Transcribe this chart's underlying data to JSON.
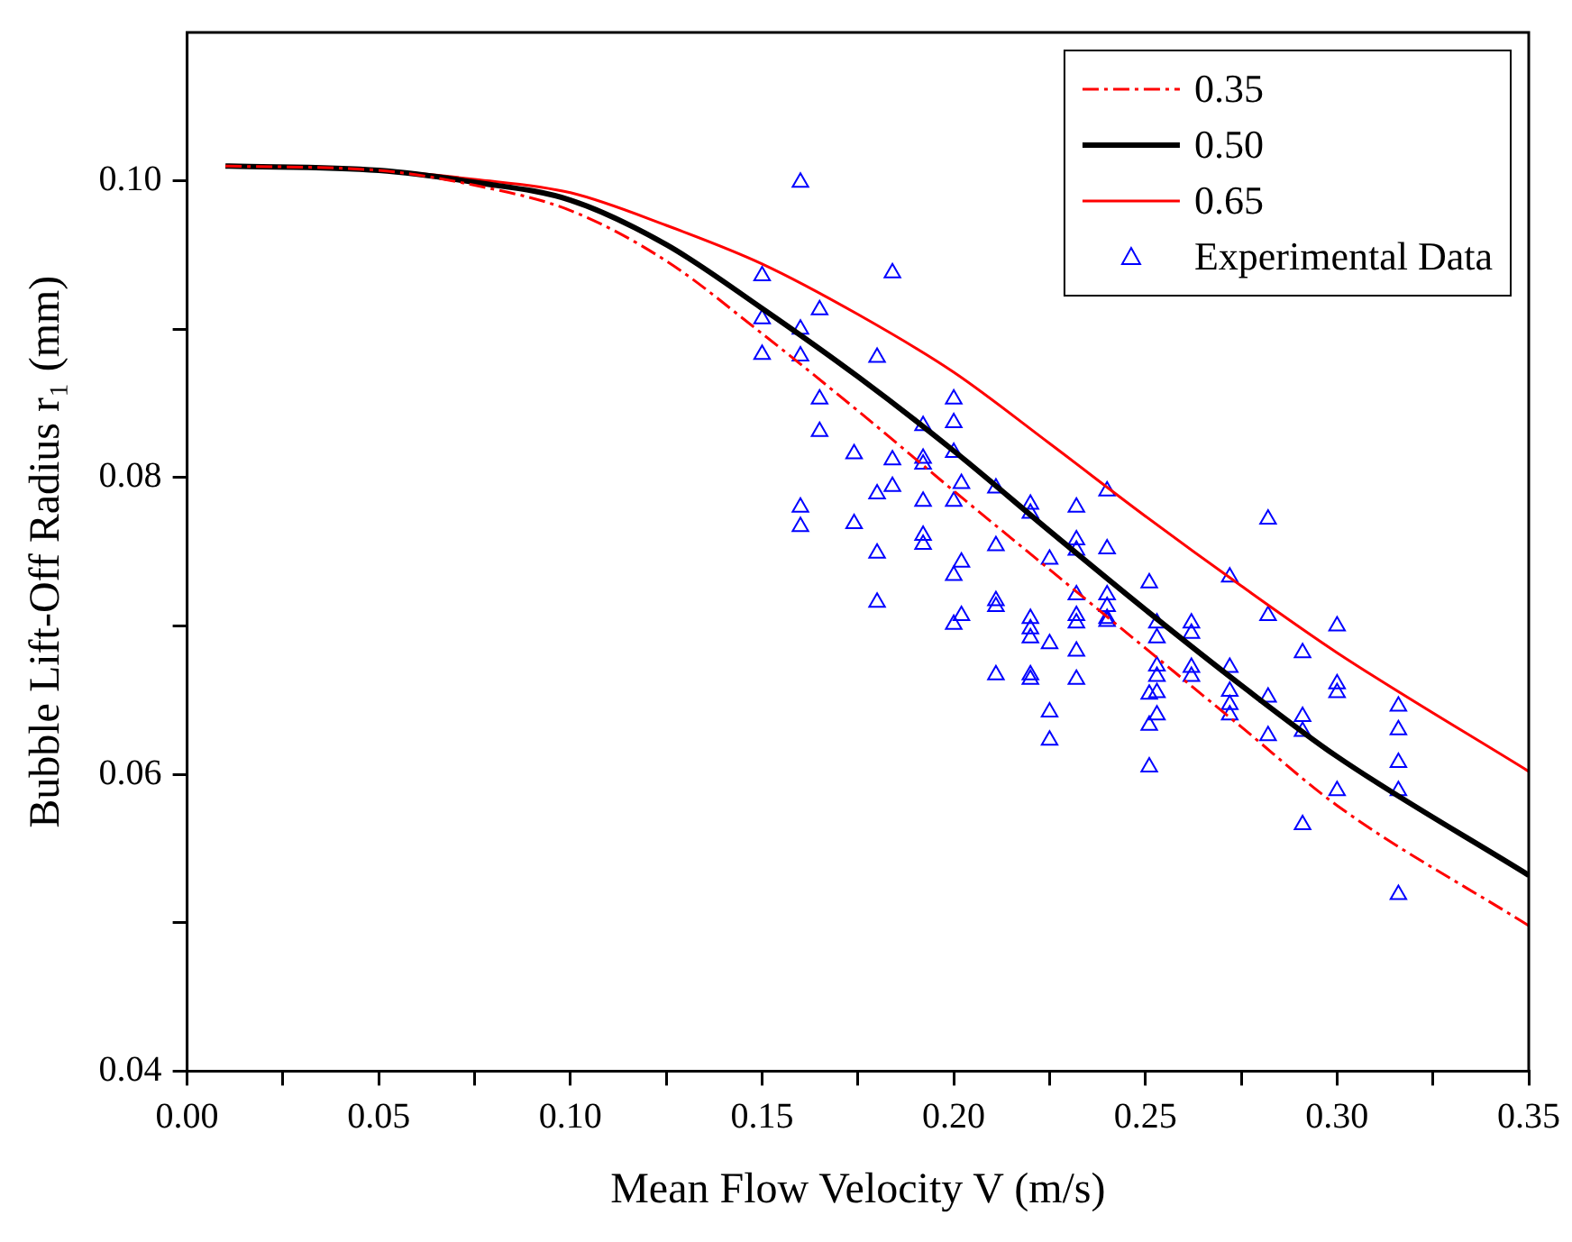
{
  "chart_data": {
    "type": "line",
    "xlabel": "Mean Flow Velocity V (m/s)",
    "ylabel": "Bubble Lift-Off Radius r₁ (mm)",
    "xlim": [
      0,
      0.35
    ],
    "ylim": [
      0.04,
      0.11
    ],
    "xticks": [
      {
        "value": 0,
        "label": "0.00"
      },
      {
        "value": 0.025,
        "label": null
      },
      {
        "value": 0.05,
        "label": "0.05"
      },
      {
        "value": 0.075,
        "label": null
      },
      {
        "value": 0.1,
        "label": "0.10"
      },
      {
        "value": 0.125,
        "label": null
      },
      {
        "value": 0.15,
        "label": "0.15"
      },
      {
        "value": 0.175,
        "label": null
      },
      {
        "value": 0.2,
        "label": "0.20"
      },
      {
        "value": 0.225,
        "label": null
      },
      {
        "value": 0.25,
        "label": "0.25"
      },
      {
        "value": 0.275,
        "label": null
      },
      {
        "value": 0.3,
        "label": "0.30"
      },
      {
        "value": 0.325,
        "label": null
      },
      {
        "value": 0.35,
        "label": "0.35"
      }
    ],
    "yticks": [
      {
        "value": 0.04,
        "label": "0.04"
      },
      {
        "value": 0.05,
        "label": null
      },
      {
        "value": 0.06,
        "label": "0.06"
      },
      {
        "value": 0.07,
        "label": null
      },
      {
        "value": 0.08,
        "label": "0.08"
      },
      {
        "value": 0.09,
        "label": null
      },
      {
        "value": 0.1,
        "label": "0.10"
      }
    ],
    "legend": "top right",
    "series": [
      {
        "name": "0.35",
        "color": "#ff0000",
        "line_style": "dashed",
        "x": [
          0.01,
          0.05,
          0.075,
          0.1,
          0.125,
          0.15,
          0.175,
          0.2,
          0.225,
          0.25,
          0.275,
          0.3,
          0.35
        ],
        "values": [
          0.101,
          0.1007,
          0.0997,
          0.098,
          0.0946,
          0.0897,
          0.0845,
          0.0791,
          0.0738,
          0.0685,
          0.0632,
          0.0579,
          0.0498
        ]
      },
      {
        "name": "0.50",
        "color": "#000000",
        "line_style": "solid",
        "x": [
          0.01,
          0.05,
          0.075,
          0.1,
          0.125,
          0.15,
          0.175,
          0.2,
          0.225,
          0.25,
          0.275,
          0.3,
          0.35
        ],
        "values": [
          0.101,
          0.1007,
          0.0999,
          0.0987,
          0.0957,
          0.0914,
          0.0868,
          0.0818,
          0.0764,
          0.0711,
          0.066,
          0.0612,
          0.0532
        ]
      },
      {
        "name": "0.65",
        "color": "#ff0000",
        "line_style": "solid",
        "x": [
          0.01,
          0.05,
          0.075,
          0.1,
          0.125,
          0.15,
          0.175,
          0.2,
          0.225,
          0.25,
          0.275,
          0.3,
          0.35
        ],
        "values": [
          0.101,
          0.1007,
          0.1001,
          0.0992,
          0.097,
          0.0944,
          0.091,
          0.0871,
          0.0823,
          0.0774,
          0.0727,
          0.0682,
          0.0602
        ]
      },
      {
        "name": "Experimental Data",
        "type": "scatter",
        "color": "#0000ff",
        "marker": "triangle",
        "x": [
          0.15,
          0.15,
          0.15,
          0.16,
          0.16,
          0.16,
          0.16,
          0.16,
          0.165,
          0.165,
          0.165,
          0.174,
          0.174,
          0.18,
          0.18,
          0.18,
          0.18,
          0.184,
          0.184,
          0.184,
          0.192,
          0.192,
          0.192,
          0.192,
          0.192,
          0.192,
          0.2,
          0.2,
          0.2,
          0.2,
          0.2,
          0.2,
          0.202,
          0.202,
          0.202,
          0.211,
          0.211,
          0.211,
          0.211,
          0.211,
          0.22,
          0.22,
          0.22,
          0.22,
          0.22,
          0.22,
          0.22,
          0.225,
          0.225,
          0.225,
          0.225,
          0.232,
          0.232,
          0.232,
          0.232,
          0.232,
          0.232,
          0.232,
          0.232,
          0.24,
          0.24,
          0.24,
          0.24,
          0.24,
          0.24,
          0.251,
          0.251,
          0.251,
          0.251,
          0.253,
          0.253,
          0.253,
          0.253,
          0.253,
          0.253,
          0.262,
          0.262,
          0.262,
          0.262,
          0.272,
          0.272,
          0.272,
          0.272,
          0.272,
          0.282,
          0.282,
          0.282,
          0.282,
          0.291,
          0.291,
          0.291,
          0.291,
          0.3,
          0.3,
          0.3,
          0.3,
          0.316,
          0.316,
          0.316,
          0.316,
          0.316
        ],
        "values": [
          0.0936,
          0.0907,
          0.0883,
          0.0999,
          0.09,
          0.0882,
          0.078,
          0.0767,
          0.0913,
          0.0853,
          0.0831,
          0.0816,
          0.0769,
          0.0881,
          0.0789,
          0.0749,
          0.0716,
          0.0938,
          0.0812,
          0.0794,
          0.0835,
          0.0813,
          0.0809,
          0.0784,
          0.0761,
          0.0755,
          0.0853,
          0.0837,
          0.0817,
          0.0784,
          0.0734,
          0.0701,
          0.0796,
          0.0743,
          0.0707,
          0.0793,
          0.0754,
          0.0717,
          0.0713,
          0.0667,
          0.0782,
          0.0776,
          0.0705,
          0.0698,
          0.0692,
          0.0667,
          0.0664,
          0.0745,
          0.0688,
          0.0642,
          0.0623,
          0.078,
          0.0758,
          0.0751,
          0.0721,
          0.0707,
          0.0702,
          0.0683,
          0.0664,
          0.0791,
          0.0752,
          0.0721,
          0.0713,
          0.0705,
          0.0703,
          0.0729,
          0.0654,
          0.0633,
          0.0605,
          0.0702,
          0.0692,
          0.0673,
          0.0666,
          0.0655,
          0.064,
          0.0702,
          0.0695,
          0.0672,
          0.0666,
          0.0733,
          0.0672,
          0.0656,
          0.0647,
          0.064,
          0.0772,
          0.0707,
          0.0652,
          0.0626,
          0.0682,
          0.0639,
          0.0629,
          0.0566,
          0.07,
          0.0661,
          0.0655,
          0.0589,
          0.0646,
          0.063,
          0.0608,
          0.0589,
          0.0519
        ]
      }
    ]
  }
}
